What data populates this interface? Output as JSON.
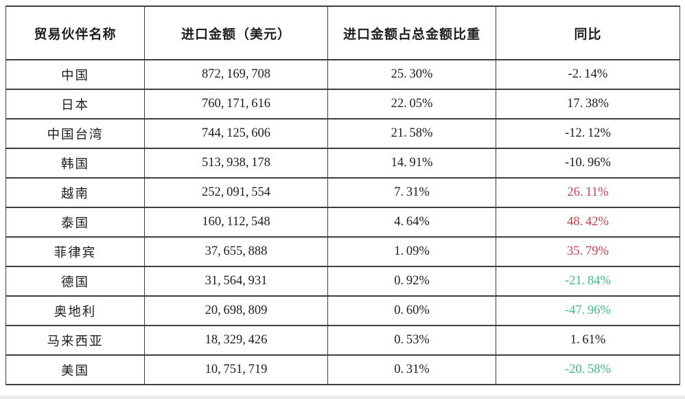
{
  "table": {
    "columns": [
      {
        "label": "贸易伙伴名称"
      },
      {
        "label": "进口金额（美元）"
      },
      {
        "label": "进口金额占总金额比重"
      },
      {
        "label": "同比"
      }
    ],
    "rows": [
      {
        "partner": "中国",
        "amount": "872,169,708",
        "share": "25.30%",
        "yoy": "-2.14%",
        "yoy_style": "plain"
      },
      {
        "partner": "日本",
        "amount": "760,171,616",
        "share": "22.05%",
        "yoy": "17.38%",
        "yoy_style": "plain"
      },
      {
        "partner": "中国台湾",
        "amount": "744,125,606",
        "share": "21.58%",
        "yoy": "-12.12%",
        "yoy_style": "plain"
      },
      {
        "partner": "韩国",
        "amount": "513,938,178",
        "share": "14.91%",
        "yoy": "-10.96%",
        "yoy_style": "plain"
      },
      {
        "partner": "越南",
        "amount": "252,091,554",
        "share": "7.31%",
        "yoy": "26.11%",
        "yoy_style": "red"
      },
      {
        "partner": "泰国",
        "amount": "160,112,548",
        "share": "4.64%",
        "yoy": "48.42%",
        "yoy_style": "red"
      },
      {
        "partner": "菲律宾",
        "amount": "37,655,888",
        "share": "1.09%",
        "yoy": "35.79%",
        "yoy_style": "red"
      },
      {
        "partner": "德国",
        "amount": "31,564,931",
        "share": "0.92%",
        "yoy": "-21.84%",
        "yoy_style": "green"
      },
      {
        "partner": "奥地利",
        "amount": "20,698,809",
        "share": "0.60%",
        "yoy": "-47.96%",
        "yoy_style": "green"
      },
      {
        "partner": "马来西亚",
        "amount": "18,329,426",
        "share": "0.53%",
        "yoy": "1.61%",
        "yoy_style": "plain"
      },
      {
        "partner": "美国",
        "amount": "10,751,719",
        "share": "0.31%",
        "yoy": "-20.58%",
        "yoy_style": "green"
      }
    ]
  },
  "colors": {
    "text": "#1d1d1f",
    "border": "#3d3d3d",
    "yoy_up_red": "#c9404f",
    "yoy_down_green": "#3cbe8c"
  }
}
